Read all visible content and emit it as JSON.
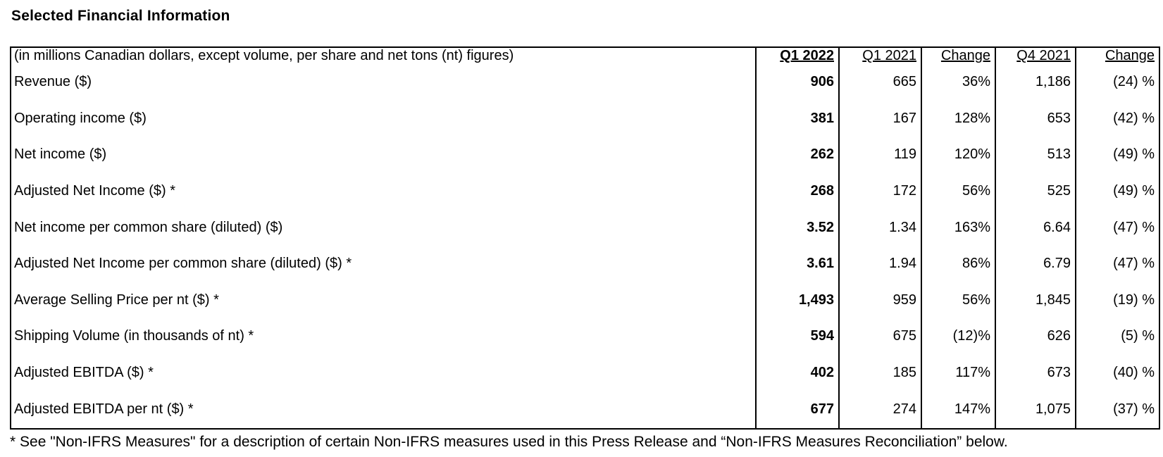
{
  "page_title": "Selected Financial Information",
  "colors": {
    "text": "#000000",
    "background": "#ffffff",
    "border": "#000000"
  },
  "table": {
    "header": {
      "label": "(in millions Canadian dollars, except volume, per share and net tons (nt) figures)",
      "columns": [
        "Q1 2022",
        "Q1 2021",
        "Change",
        "Q4 2021",
        "Change"
      ]
    },
    "rows": [
      {
        "label": "Revenue ($)",
        "values": [
          "906",
          "665",
          "36%",
          "1,186",
          "(24) %"
        ]
      },
      {
        "label": "Operating income ($)",
        "values": [
          "381",
          "167",
          "128%",
          "653",
          "(42) %"
        ]
      },
      {
        "label": "Net income ($)",
        "values": [
          "262",
          "119",
          "120%",
          "513",
          "(49) %"
        ]
      },
      {
        "label": "Adjusted Net Income ($) *",
        "values": [
          "268",
          "172",
          "56%",
          "525",
          "(49) %"
        ]
      },
      {
        "label": "",
        "values": [
          "",
          "",
          "",
          "",
          ""
        ]
      },
      {
        "label": "Net income per common share (diluted) ($)",
        "values": [
          "3.52",
          "1.34",
          "163%",
          "6.64",
          "(47) %"
        ]
      },
      {
        "label": "Adjusted Net Income per common share (diluted) ($) *",
        "values": [
          "3.61",
          "1.94",
          "86%",
          "6.79",
          "(47) %"
        ]
      },
      {
        "label": "",
        "values": [
          "",
          "",
          "",
          "",
          ""
        ]
      },
      {
        "label": "Average Selling Price per nt ($) *",
        "values": [
          "1,493",
          "959",
          "56%",
          "1,845",
          "(19) %"
        ]
      },
      {
        "label": "Shipping Volume (in thousands of nt) *",
        "values": [
          "594",
          "675",
          "(12)%",
          "626",
          "(5) %"
        ]
      },
      {
        "label": "",
        "values": [
          "",
          "",
          "",
          "",
          ""
        ]
      },
      {
        "label": "Adjusted EBITDA ($) *",
        "values": [
          "402",
          "185",
          "117%",
          "673",
          "(40) %"
        ]
      },
      {
        "label": "",
        "values": [
          "",
          "",
          "",
          "",
          ""
        ]
      },
      {
        "label": "Adjusted EBITDA per nt ($) *",
        "values": [
          "677",
          "274",
          "147%",
          "1,075",
          "(37) %"
        ]
      }
    ]
  },
  "footnote": "* See \"Non-IFRS Measures\" for a description of certain Non-IFRS measures used in this Press Release and “Non-IFRS Measures Reconciliation” below."
}
